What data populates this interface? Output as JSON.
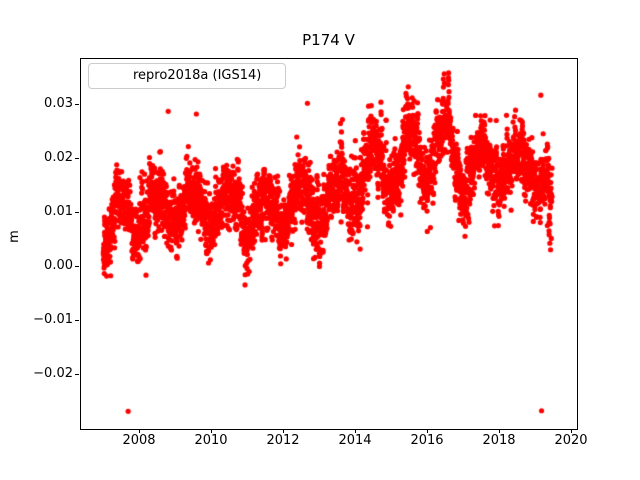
{
  "chart_data": {
    "type": "scatter",
    "title": "P174 V",
    "xlabel": "",
    "ylabel": "m",
    "grid": false,
    "legend_position": "upper left",
    "xlim": [
      2006.375,
      2020.125
    ],
    "ylim": [
      -0.0301,
      0.0386
    ],
    "xticks": {
      "values": [
        2008,
        2010,
        2012,
        2014,
        2016,
        2018,
        2020
      ],
      "labels": [
        "2008",
        "2010",
        "2012",
        "2014",
        "2016",
        "2018",
        "2020"
      ]
    },
    "yticks": {
      "values": [
        -0.02,
        -0.01,
        0.0,
        0.01,
        0.02,
        0.03
      ],
      "labels": [
        "−0.02",
        "−0.01",
        "0.00",
        "0.01",
        "0.02",
        "0.03"
      ]
    },
    "series": [
      {
        "name": "repro2018a (IGS14)",
        "color": "#ff0000",
        "marker": "dot",
        "marker_radius": 2.6,
        "generator": {
          "comment": "daily GPS vertical time series read from plot: rising trend with annual cycle (min near each year boundary), noisy band ~±0.006, summer spike episodes 2013-2016 reaching 0.035",
          "seed": 1234567,
          "start": 2007.02,
          "end": 2019.46,
          "per_year": 330,
          "trend_anchors": [
            [
              2007.0,
              0.0062
            ],
            [
              2007.4,
              0.0085
            ],
            [
              2008.0,
              0.0095
            ],
            [
              2008.6,
              0.0105
            ],
            [
              2009.0,
              0.0108
            ],
            [
              2010.0,
              0.011
            ],
            [
              2011.0,
              0.0103
            ],
            [
              2011.6,
              0.0098
            ],
            [
              2012.0,
              0.01
            ],
            [
              2012.6,
              0.0118
            ],
            [
              2013.0,
              0.0112
            ],
            [
              2013.6,
              0.013
            ],
            [
              2014.0,
              0.0148
            ],
            [
              2014.6,
              0.0172
            ],
            [
              2015.0,
              0.0185
            ],
            [
              2015.6,
              0.02
            ],
            [
              2016.0,
              0.0205
            ],
            [
              2016.6,
              0.0208
            ],
            [
              2017.0,
              0.0172
            ],
            [
              2017.6,
              0.0185
            ],
            [
              2018.0,
              0.018
            ],
            [
              2018.6,
              0.0186
            ],
            [
              2019.0,
              0.0178
            ],
            [
              2019.3,
              0.0155
            ],
            [
              2019.46,
              0.01
            ]
          ],
          "seasonal_amp_by_year": [
            0.004,
            0.0036,
            0.003,
            0.0034,
            0.0036,
            0.003,
            0.0038,
            0.0052,
            0.0058,
            0.0058,
            0.004,
            0.0028,
            0.0034
          ],
          "first_year": 2007,
          "noise_sd": 0.0026,
          "extra_noise_sd": 0.0014,
          "ar_phi": 0.55,
          "episode_prob": 0.035,
          "episode_scale": 0.0055,
          "episode_decay": 0.78,
          "episode_years": [
            2013.4,
            2016.8
          ],
          "small_spike_prob": 0.01,
          "small_spike_scale": 0.0038,
          "low_tail_prob": 0.012,
          "low_tail_scale": 0.0035,
          "soft_max": 0.036,
          "hard_min": -0.0085
        },
        "notable_points": [
          [
            2007.71,
            -0.027
          ],
          [
            2019.17,
            -0.0269
          ],
          [
            2008.82,
            0.0287
          ],
          [
            2009.6,
            0.0282
          ],
          [
            2012.68,
            0.0302
          ],
          [
            2019.15,
            0.0317
          ],
          [
            2019.33,
            0.0075
          ],
          [
            2019.38,
            0.0058
          ],
          [
            2019.4,
            0.0042
          ],
          [
            2019.42,
            0.003
          ],
          [
            2019.44,
            0.0051
          ]
        ]
      }
    ]
  },
  "colors": {
    "marker": "#ff0000",
    "axes": "#000000",
    "legend_border": "#cccccc",
    "background": "#ffffff"
  }
}
